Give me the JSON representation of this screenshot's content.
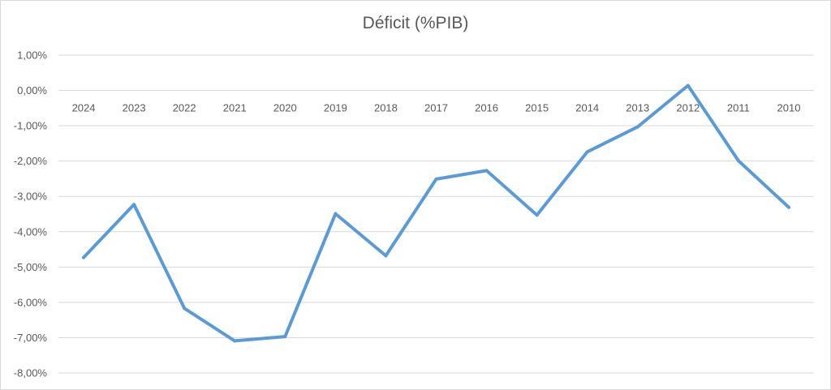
{
  "chart_data": {
    "type": "line",
    "title": "Déficit (%PIB)",
    "xlabel": "",
    "ylabel": "",
    "categories": [
      "2024",
      "2023",
      "2022",
      "2021",
      "2020",
      "2019",
      "2018",
      "2017",
      "2016",
      "2015",
      "2014",
      "2013",
      "2012",
      "2011",
      "2010"
    ],
    "series": [
      {
        "values": [
          -4.73,
          -3.23,
          -6.17,
          -7.09,
          -6.97,
          -3.49,
          -4.68,
          -2.51,
          -2.27,
          -3.53,
          -1.74,
          -1.03,
          0.14,
          -1.99,
          -3.31
        ],
        "color": "#5b9bd5"
      }
    ],
    "ylim": [
      -8.0,
      1.0
    ],
    "y_ticks": [
      "1,00%",
      "0,00%",
      "-1,00%",
      "-2,00%",
      "-3,00%",
      "-4,00%",
      "-5,00%",
      "-6,00%",
      "-7,00%",
      "-8,00%"
    ],
    "grid": true,
    "legend": "none"
  }
}
